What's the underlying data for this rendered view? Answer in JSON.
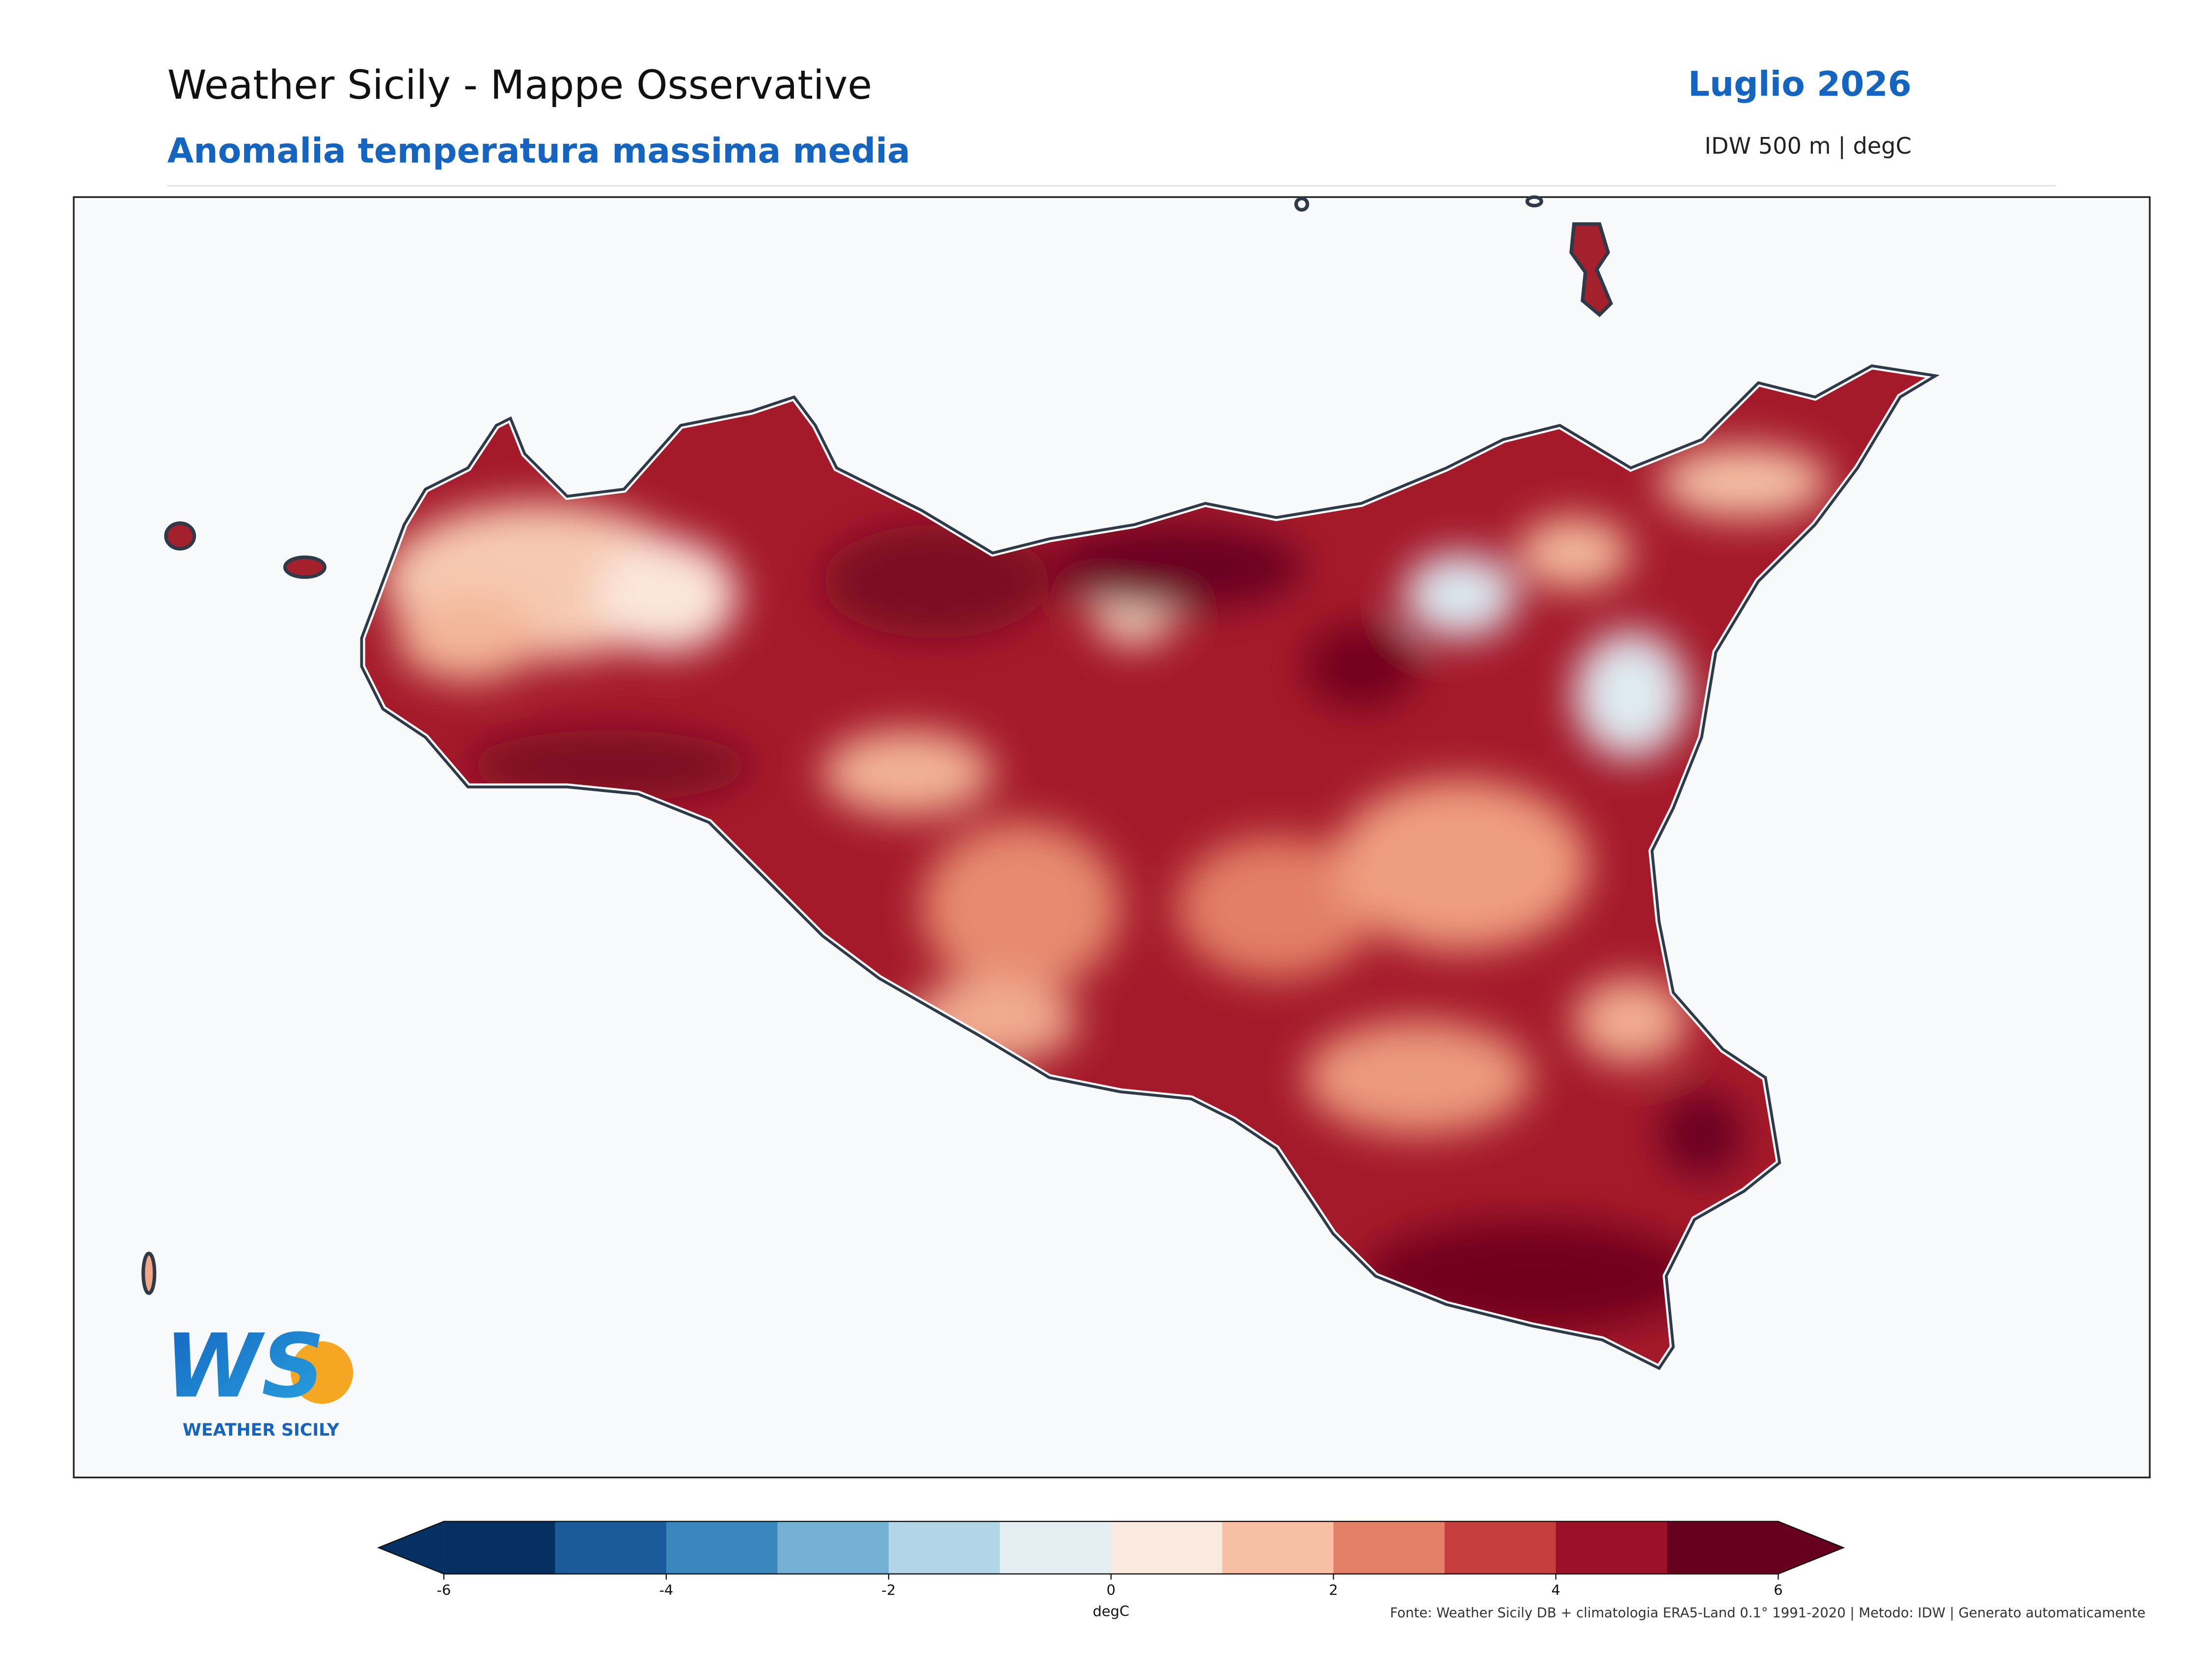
{
  "header": {
    "title": "Weather Sicily - Mappe Osservative",
    "subtitle": "Anomalia temperatura massima media",
    "period": "Luglio 2026",
    "method": "IDW 500 m | degC"
  },
  "colorbar": {
    "label": "degC",
    "lim": [
      -6,
      6
    ],
    "ticks": [
      -6,
      -4,
      -2,
      0,
      2,
      4,
      6
    ],
    "colors": [
      "#053061",
      "#1b5a9b",
      "#3a87bd",
      "#74b1d4",
      "#b2d5e7",
      "#e4eef3",
      "#f9e9df",
      "#f7bfa3",
      "#e48068",
      "#c53e3d",
      "#9c1127",
      "#67001f"
    ]
  },
  "footer": "Fonte: Weather Sicily DB + climatologia ERA5-Land 0.1° 1991-2020 | Metodo: IDW | Generato automaticamente",
  "logo": {
    "letters": "WS",
    "name": "WEATHER SICILY"
  }
}
